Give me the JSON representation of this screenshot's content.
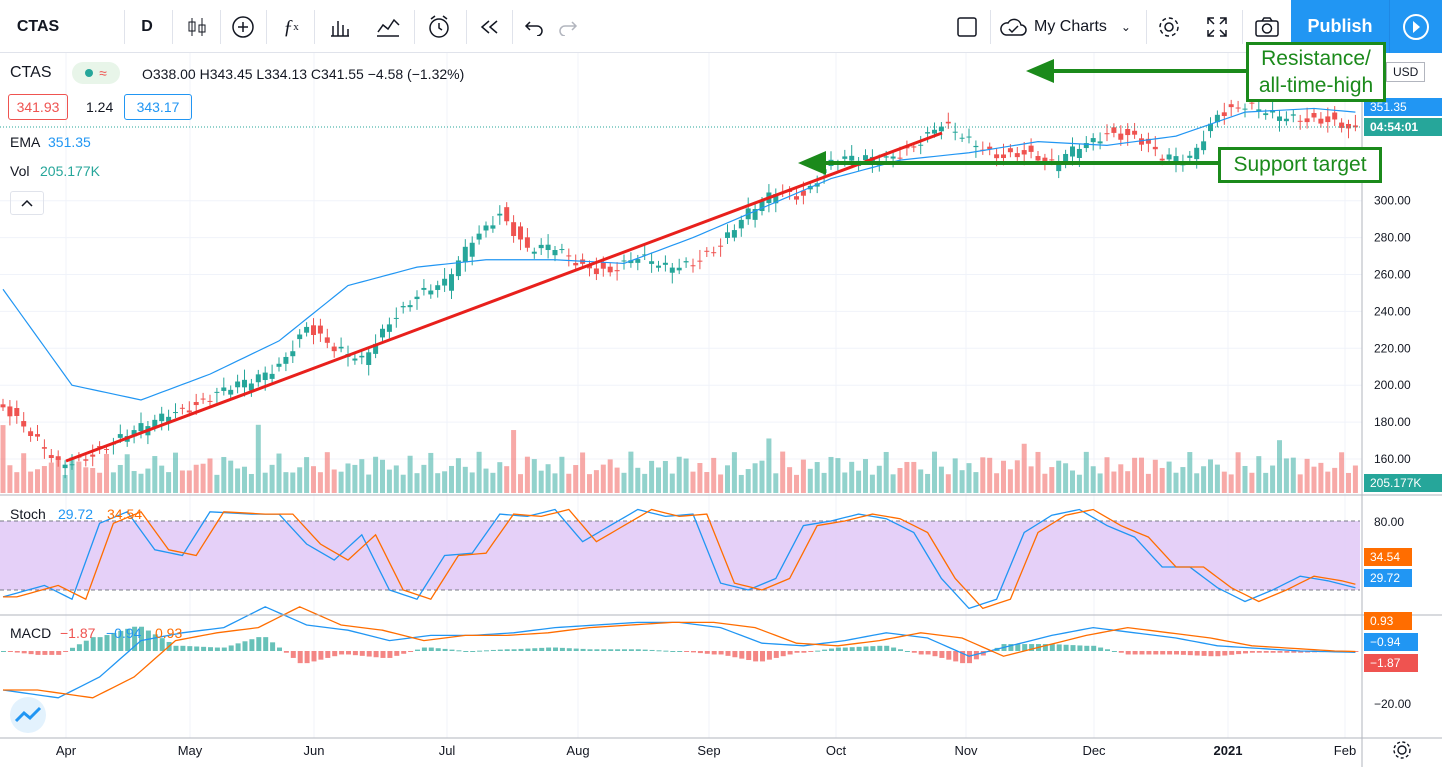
{
  "toolbar": {
    "symbol": "CTAS",
    "interval": "D",
    "my_charts": "My Charts",
    "publish": "Publish"
  },
  "legend": {
    "symbol": "CTAS",
    "ohlc": "O338.00 H343.45 L334.13 C341.55 −4.58 (−1.32%)",
    "bid": "341.93",
    "spread": "1.24",
    "ask": "343.17",
    "ema_label": "EMA",
    "ema_value": "351.35",
    "vol_label": "Vol",
    "vol_value": "205.177K",
    "stoch_label": "Stoch",
    "stoch_k": "29.72",
    "stoch_d": "34.54",
    "macd_label": "MACD",
    "macd_hist": "−1.87",
    "macd_line": "−0.94",
    "macd_signal": "0.93"
  },
  "axis_tags": {
    "currency": "USD",
    "ema": "351.35",
    "countdown": "04:54:01",
    "vol": "205.177K",
    "stoch_d": "34.54",
    "stoch_k": "29.72",
    "macd_signal": "0.93",
    "macd_line": "−0.94",
    "macd_hist": "−1.87"
  },
  "annotations": {
    "resistance": "Resistance/ all-time-high",
    "support": "Support target"
  },
  "colors": {
    "up": "#26a69a",
    "down": "#ef5350",
    "ema": "#2196f3",
    "stoch_fill": "#e1c8f7",
    "trendline": "#e8201c",
    "annotation": "#1b8a1b",
    "publish": "#2196f3"
  },
  "chart_data": {
    "type": "candlestick",
    "symbol": "CTAS",
    "interval": "D",
    "months": [
      "Apr",
      "May",
      "Jun",
      "Jul",
      "Aug",
      "Sep",
      "Oct",
      "Nov",
      "Dec",
      "2021",
      "Feb"
    ],
    "price_ticks": [
      "300.00",
      "280.00",
      "260.00",
      "240.00",
      "220.00",
      "200.00",
      "180.00",
      "160.00"
    ],
    "price_range": [
      160,
      360
    ],
    "stoch_ticks": [
      "80.00"
    ],
    "macd_ticks": [
      "−20.00"
    ],
    "price_path": [
      [
        0,
        188
      ],
      [
        4,
        172
      ],
      [
        8,
        158
      ],
      [
        12,
        162
      ],
      [
        16,
        168
      ],
      [
        20,
        176
      ],
      [
        24,
        186
      ],
      [
        28,
        190
      ],
      [
        32,
        196
      ],
      [
        36,
        202
      ],
      [
        40,
        212
      ],
      [
        44,
        232
      ],
      [
        48,
        218
      ],
      [
        52,
        214
      ],
      [
        56,
        236
      ],
      [
        60,
        248
      ],
      [
        64,
        254
      ],
      [
        68,
        280
      ],
      [
        72,
        294
      ],
      [
        76,
        272
      ],
      [
        80,
        274
      ],
      [
        84,
        266
      ],
      [
        88,
        262
      ],
      [
        92,
        268
      ],
      [
        96,
        264
      ],
      [
        100,
        268
      ],
      [
        104,
        276
      ],
      [
        108,
        292
      ],
      [
        112,
        306
      ],
      [
        116,
        304
      ],
      [
        120,
        320
      ],
      [
        124,
        322
      ],
      [
        128,
        324
      ],
      [
        132,
        330
      ],
      [
        136,
        340
      ],
      [
        140,
        332
      ],
      [
        144,
        326
      ],
      [
        148,
        326
      ],
      [
        152,
        318
      ],
      [
        156,
        330
      ],
      [
        160,
        338
      ],
      [
        164,
        334
      ],
      [
        168,
        322
      ],
      [
        172,
        324
      ],
      [
        176,
        348
      ],
      [
        180,
        350
      ],
      [
        184,
        346
      ],
      [
        188,
        346
      ],
      [
        192,
        344
      ],
      [
        196,
        336
      ]
    ],
    "ema_path": [
      [
        0,
        252
      ],
      [
        10,
        200
      ],
      [
        20,
        192
      ],
      [
        30,
        206
      ],
      [
        40,
        224
      ],
      [
        50,
        254
      ],
      [
        60,
        264
      ],
      [
        70,
        268
      ],
      [
        80,
        268
      ],
      [
        90,
        266
      ],
      [
        100,
        280
      ],
      [
        110,
        296
      ],
      [
        120,
        312
      ],
      [
        130,
        322
      ],
      [
        140,
        326
      ],
      [
        150,
        332
      ],
      [
        160,
        330
      ],
      [
        170,
        335
      ],
      [
        180,
        348
      ],
      [
        190,
        350
      ],
      [
        196,
        348
      ]
    ],
    "stoch_k_path": [
      [
        0,
        14
      ],
      [
        6,
        24
      ],
      [
        10,
        12
      ],
      [
        14,
        78
      ],
      [
        18,
        88
      ],
      [
        22,
        55
      ],
      [
        26,
        50
      ],
      [
        30,
        88
      ],
      [
        36,
        86
      ],
      [
        40,
        86
      ],
      [
        44,
        60
      ],
      [
        48,
        46
      ],
      [
        52,
        68
      ],
      [
        56,
        20
      ],
      [
        60,
        12
      ],
      [
        64,
        50
      ],
      [
        68,
        52
      ],
      [
        72,
        86
      ],
      [
        76,
        84
      ],
      [
        80,
        90
      ],
      [
        84,
        62
      ],
      [
        88,
        76
      ],
      [
        92,
        90
      ],
      [
        96,
        84
      ],
      [
        100,
        86
      ],
      [
        104,
        26
      ],
      [
        108,
        20
      ],
      [
        112,
        30
      ],
      [
        116,
        76
      ],
      [
        120,
        80
      ],
      [
        124,
        86
      ],
      [
        128,
        82
      ],
      [
        132,
        70
      ],
      [
        136,
        30
      ],
      [
        140,
        4
      ],
      [
        144,
        12
      ],
      [
        148,
        70
      ],
      [
        152,
        85
      ],
      [
        156,
        90
      ],
      [
        160,
        76
      ],
      [
        164,
        66
      ],
      [
        168,
        40
      ],
      [
        172,
        40
      ],
      [
        176,
        22
      ],
      [
        180,
        10
      ],
      [
        184,
        20
      ],
      [
        188,
        32
      ],
      [
        192,
        28
      ],
      [
        196,
        22
      ]
    ],
    "macd_line_path": [
      [
        0,
        -30
      ],
      [
        8,
        -36
      ],
      [
        14,
        -20
      ],
      [
        20,
        8
      ],
      [
        26,
        14
      ],
      [
        32,
        18
      ],
      [
        38,
        34
      ],
      [
        44,
        20
      ],
      [
        50,
        16
      ],
      [
        56,
        8
      ],
      [
        62,
        12
      ],
      [
        68,
        12
      ],
      [
        74,
        14
      ],
      [
        80,
        18
      ],
      [
        86,
        20
      ],
      [
        92,
        22
      ],
      [
        98,
        22
      ],
      [
        104,
        18
      ],
      [
        110,
        6
      ],
      [
        116,
        4
      ],
      [
        122,
        8
      ],
      [
        128,
        14
      ],
      [
        134,
        10
      ],
      [
        140,
        -4
      ],
      [
        146,
        4
      ],
      [
        152,
        12
      ],
      [
        158,
        18
      ],
      [
        164,
        14
      ],
      [
        170,
        10
      ],
      [
        176,
        4
      ],
      [
        182,
        2
      ],
      [
        188,
        0
      ],
      [
        196,
        -1
      ]
    ]
  }
}
